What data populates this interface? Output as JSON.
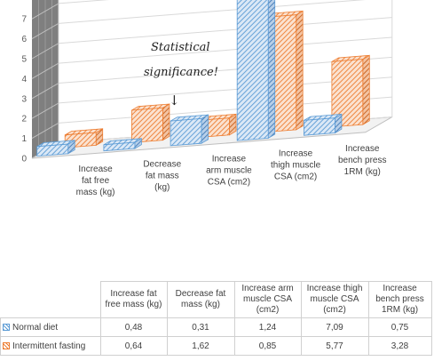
{
  "chart_data": {
    "type": "bar",
    "categories": [
      "Increase fat free mass (kg)",
      "Decrease fat mass (kg)",
      "Increase arm muscle CSA (cm2)",
      "Increase thigh muscle CSA (cm2)",
      "Increase bench press 1RM (kg)"
    ],
    "series": [
      {
        "name": "Normal diet",
        "values": [
          0.48,
          0.31,
          1.24,
          7.09,
          0.75
        ],
        "display": [
          "0,48",
          "0,31",
          "1,24",
          "7,09",
          "0,75"
        ],
        "color": "#5b9bd5"
      },
      {
        "name": "Intermittent fasting",
        "values": [
          0.64,
          1.62,
          0.85,
          5.77,
          3.28
        ],
        "display": [
          "0,64",
          "1,62",
          "0,85",
          "5,77",
          "3,28"
        ],
        "color": "#ed7d31"
      }
    ],
    "ylim": [
      0,
      8
    ],
    "yticks": [
      "0",
      "1",
      "2",
      "3",
      "4",
      "5",
      "6",
      "7"
    ],
    "grid": true,
    "annotation": "Statistical significance!",
    "annotation_arrow": "↓",
    "data_table": true
  }
}
